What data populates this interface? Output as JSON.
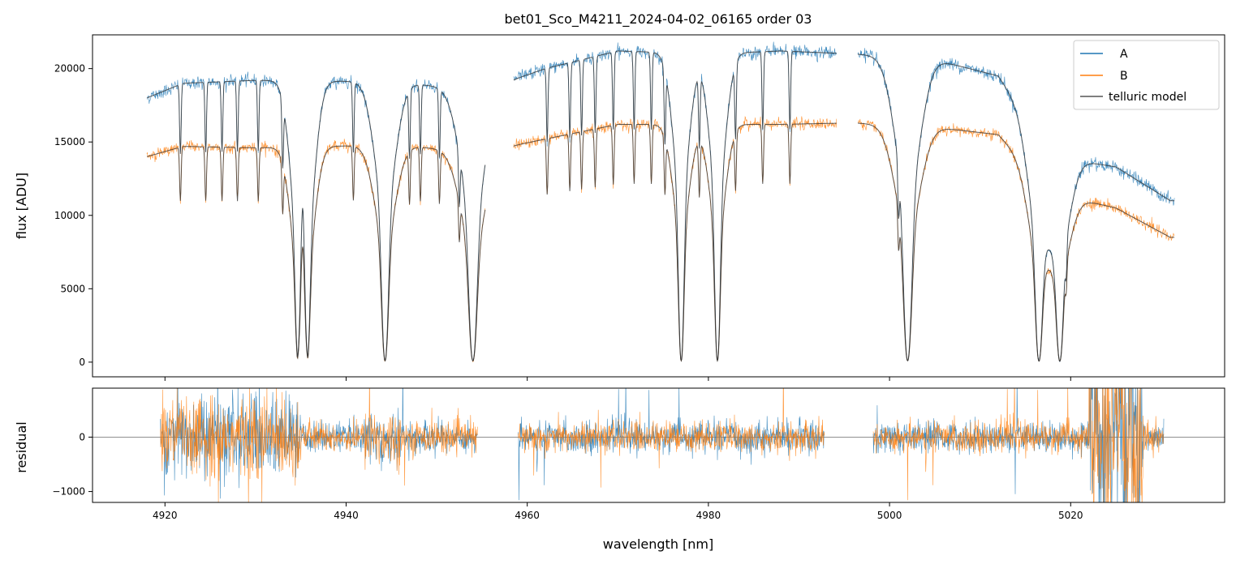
{
  "chart_data": [
    {
      "type": "line",
      "panel": "top",
      "title": "bet01_Sco_M4211_2024-04-02_06165  order 03",
      "xlabel": "",
      "ylabel": "flux [ADU]",
      "xlim": [
        4912,
        5037
      ],
      "ylim": [
        -1000,
        22300
      ],
      "xticks": [
        4920,
        4940,
        4960,
        4980,
        5000,
        5020
      ],
      "yticks": [
        0,
        5000,
        10000,
        15000,
        20000
      ],
      "yticklabels": [
        "0",
        "5000",
        "10000",
        "15000",
        "20000"
      ],
      "grid": false,
      "legend_position": "top-right",
      "series": [
        {
          "name": "A",
          "color": "#1f77b4",
          "continuum": [
            [
              4918,
              18000
            ],
            [
              4922,
              19000
            ],
            [
              4930,
              19200
            ],
            [
              4945,
              19100
            ],
            [
              4955,
              18500
            ],
            [
              4962,
              20000
            ],
            [
              4970,
              21200
            ],
            [
              4980,
              21000
            ],
            [
              4988,
              21200
            ],
            [
              4996,
              21000
            ],
            [
              5005,
              20600
            ],
            [
              5012,
              19500
            ],
            [
              5018,
              14000
            ],
            [
              5025,
              13300
            ],
            [
              5031,
              11000
            ]
          ]
        },
        {
          "name": "B",
          "color": "#ff7f0e",
          "continuum": [
            [
              4918,
              14000
            ],
            [
              4922,
              14700
            ],
            [
              4930,
              14600
            ],
            [
              4945,
              14800
            ],
            [
              4955,
              14300
            ],
            [
              4962,
              15200
            ],
            [
              4970,
              16200
            ],
            [
              4980,
              16200
            ],
            [
              4988,
              16200
            ],
            [
              4996,
              16300
            ],
            [
              5005,
              16000
            ],
            [
              5012,
              15500
            ],
            [
              5018,
              11500
            ],
            [
              5025,
              10500
            ],
            [
              5031,
              8500
            ]
          ]
        },
        {
          "name": "telluric model",
          "color": "#555555"
        }
      ],
      "absorption_bands": [
        [
          4934.7,
          0.4
        ],
        [
          4935.7,
          0.4
        ],
        [
          4944.3,
          0.5
        ],
        [
          4954.0,
          0.6
        ],
        [
          4977.0,
          0.4
        ],
        [
          4981.0,
          0.4
        ],
        [
          5002.0,
          0.6
        ],
        [
          5016.5,
          0.5
        ],
        [
          5018.8,
          0.5
        ]
      ],
      "emission_peaks": [
        [
          4935.2,
          10500
        ],
        [
          4955.0,
          7200
        ],
        [
          5017.5,
          2800
        ]
      ],
      "gaps": [
        [
          4955.4,
          4958.5
        ],
        [
          4994.2,
          4996.5
        ]
      ]
    },
    {
      "type": "line",
      "panel": "bottom",
      "xlabel": "wavelength [nm]",
      "ylabel": "residual",
      "xlim": [
        4912,
        5037
      ],
      "ylim": [
        -1200,
        900
      ],
      "xticks": [
        4920,
        4940,
        4960,
        4980,
        5000,
        5020
      ],
      "xticklabels": [
        "4920",
        "4940",
        "4960",
        "4980",
        "5000",
        "5020"
      ],
      "yticks": [
        -1000,
        0
      ],
      "yticklabels": [
        "−1000",
        "0"
      ],
      "zero_line": true,
      "segments": [
        [
          4919.5,
          4954.5
        ],
        [
          4959,
          4992.8
        ],
        [
          4998.2,
          5030.3
        ]
      ],
      "series": [
        {
          "name": "A",
          "color": "#1f77b4"
        },
        {
          "name": "B",
          "color": "#ff7f0e"
        }
      ]
    }
  ]
}
